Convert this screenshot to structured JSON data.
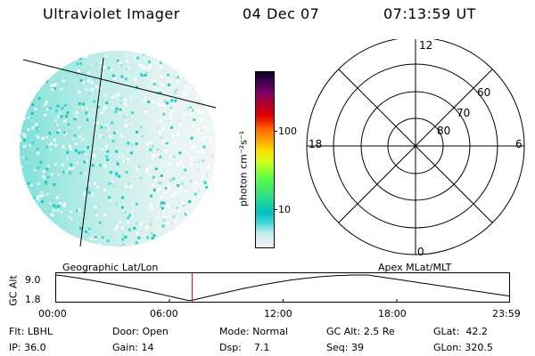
{
  "header": {
    "title": "Ultraviolet Imager",
    "date": "04 Dec 07",
    "time": "07:13:59 UT"
  },
  "colorbar": {
    "unit_label": "photon cm⁻²s⁻¹",
    "ticks": [
      "100",
      "10"
    ]
  },
  "polar": {
    "mlt_labels": {
      "top": "12",
      "left": "18",
      "right": "6",
      "bottom": "0"
    },
    "lat_labels": [
      "60",
      "70",
      "80"
    ]
  },
  "altitude_panel": {
    "left_title": "Geographic Lat/Lon",
    "right_title": "Apex MLat/MLT",
    "axis_label": "GC Alt",
    "y_ticks": [
      "9.0",
      "1.8"
    ],
    "x_ticks": [
      "00:00",
      "06:00",
      "12:00",
      "18:00",
      "23:59"
    ],
    "current_time_hours": 7.23
  },
  "info": {
    "row1": [
      {
        "label": "Flt:",
        "value": "LBHL"
      },
      {
        "label": "Door:",
        "value": "Open"
      },
      {
        "label": "Mode:",
        "value": "Normal"
      },
      {
        "label": "GC Alt:",
        "value": "2.5 Re"
      },
      {
        "label": "GLat:",
        "value": "42.2"
      }
    ],
    "row2": [
      {
        "label": "IP:",
        "value": "36.0"
      },
      {
        "label": "Gain:",
        "value": "14"
      },
      {
        "label": "Dsp:",
        "value": "7.1"
      },
      {
        "label": "Seq:",
        "value": "39"
      },
      {
        "label": "GLon:",
        "value": "320.5"
      }
    ]
  }
}
